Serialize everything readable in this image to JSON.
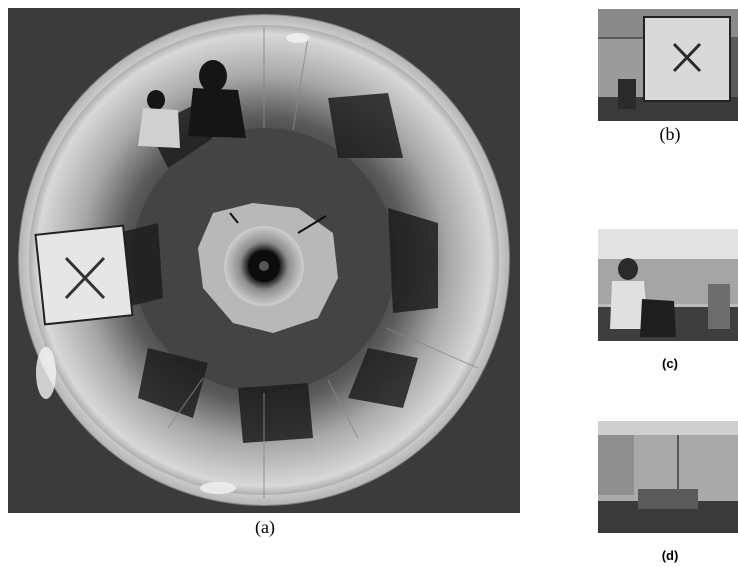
{
  "figure": {
    "panels": [
      {
        "id": "a",
        "caption": "(a)",
        "content": "omnidirectional-camera-image"
      },
      {
        "id": "b",
        "caption": "(b)",
        "content": "perspective-view-target-board"
      },
      {
        "id": "c",
        "caption": "(c)",
        "content": "perspective-view-person"
      },
      {
        "id": "d",
        "caption": "(d)",
        "content": "perspective-view-room-corner"
      }
    ]
  },
  "colors": {
    "background": "#ffffff",
    "frame": "#3a3a3a",
    "floor": "#4a4a4a",
    "wall": "#bdbdbd",
    "bright": "#e8e8e8"
  }
}
